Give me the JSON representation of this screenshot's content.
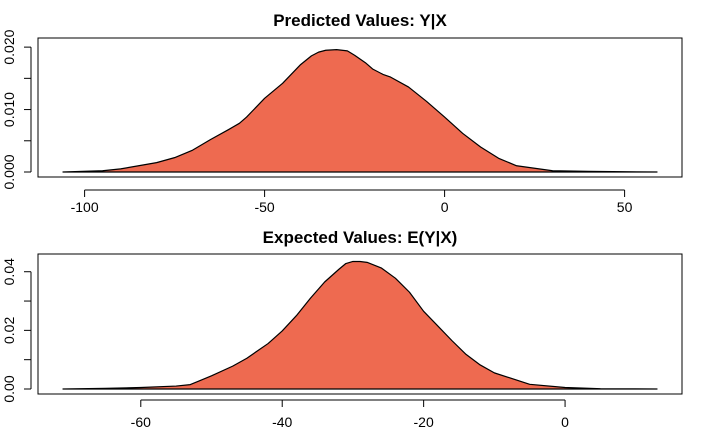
{
  "chart_data": [
    {
      "type": "area",
      "title": "Predicted Values: Y|X",
      "xlabel": "",
      "ylabel": "",
      "fill_color": "#EE6A50",
      "line_color": "#000000",
      "xlim": [
        -106,
        59
      ],
      "ylim": [
        0,
        0.0205
      ],
      "x_ticks": [
        -100,
        -50,
        0,
        50
      ],
      "x_tick_labels": [
        "-100",
        "-50",
        "0",
        "50"
      ],
      "y_ticks": [
        0.0,
        0.005,
        0.01,
        0.015,
        0.02
      ],
      "y_tick_labels": [
        "0.000",
        "",
        "0.010",
        "",
        "0.020"
      ],
      "grid": false,
      "x": [
        -106,
        -95,
        -90,
        -85,
        -80,
        -75,
        -70,
        -65,
        -60,
        -57,
        -55,
        -50,
        -45,
        -40,
        -37,
        -35,
        -33,
        -30,
        -27,
        -25,
        -22,
        -20,
        -17,
        -15,
        -10,
        -5,
        0,
        5,
        10,
        15,
        20,
        25,
        30,
        40,
        50,
        59
      ],
      "y": [
        0.0,
        0.0002,
        0.0005,
        0.001,
        0.0015,
        0.0023,
        0.0035,
        0.0052,
        0.0068,
        0.0078,
        0.0088,
        0.0118,
        0.0142,
        0.0172,
        0.0186,
        0.0192,
        0.0195,
        0.0196,
        0.0194,
        0.0187,
        0.0175,
        0.0165,
        0.0156,
        0.0152,
        0.0136,
        0.0113,
        0.0088,
        0.0062,
        0.004,
        0.0022,
        0.001,
        0.0006,
        0.0002,
        0.0001,
        5e-05,
        0.0
      ]
    },
    {
      "type": "area",
      "title": "Expected Values: E(Y|X)",
      "xlabel": "",
      "ylabel": "",
      "fill_color": "#EE6A50",
      "line_color": "#000000",
      "xlim": [
        -71,
        13
      ],
      "ylim": [
        0,
        0.044
      ],
      "x_ticks": [
        -60,
        -40,
        -20,
        0
      ],
      "x_tick_labels": [
        "-60",
        "-40",
        "-20",
        "0"
      ],
      "y_ticks": [
        0.0,
        0.01,
        0.02,
        0.03,
        0.04
      ],
      "y_tick_labels": [
        "0.00",
        "",
        "0.02",
        "",
        "0.04"
      ],
      "grid": false,
      "x": [
        -71,
        -65,
        -60,
        -55,
        -53,
        -50,
        -47,
        -45,
        -42,
        -40,
        -38,
        -36,
        -34,
        -32,
        -31,
        -30,
        -29,
        -28,
        -26,
        -24,
        -22,
        -20,
        -18,
        -16,
        -14,
        -12,
        -10,
        -5,
        0,
        5,
        13
      ],
      "y": [
        0.0,
        0.0002,
        0.0005,
        0.001,
        0.0015,
        0.0045,
        0.0078,
        0.0105,
        0.0155,
        0.0198,
        0.025,
        0.031,
        0.0365,
        0.0408,
        0.0428,
        0.0435,
        0.0435,
        0.0432,
        0.0413,
        0.0378,
        0.033,
        0.0265,
        0.0215,
        0.0165,
        0.0118,
        0.0082,
        0.0055,
        0.0016,
        0.0005,
        0.0001,
        0.0
      ]
    }
  ]
}
